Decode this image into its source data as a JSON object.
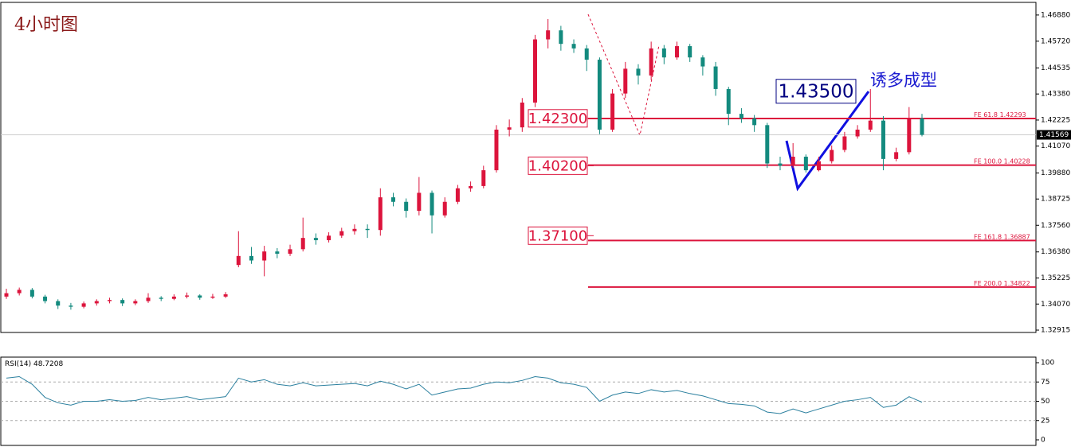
{
  "chart_data": {
    "type": "candlestick",
    "title": "4小时图",
    "ylim": [
      1.3281,
      1.4744
    ],
    "yticks": [
      {
        "value": 1.4688,
        "label": "1.46880"
      },
      {
        "value": 1.4572,
        "label": "1.45720"
      },
      1.44535,
      {
        "value": 1.4338,
        "label": "1.43380"
      },
      1.42225,
      {
        "value": 1.4107,
        "label": "1.41070"
      },
      {
        "value": 1.3988,
        "label": "1.39880"
      },
      1.38725,
      {
        "value": 1.3756,
        "label": "1.37560"
      },
      {
        "value": 1.3638,
        "label": "1.36380"
      },
      1.35225,
      {
        "value": 1.3407,
        "label": "1.34070"
      },
      1.32915
    ],
    "up_color": "#dc143c",
    "down_color": "#138a7e",
    "ohlc": [
      [
        1.344,
        1.3475,
        1.343,
        1.3455
      ],
      [
        1.3455,
        1.348,
        1.3445,
        1.347
      ],
      [
        1.347,
        1.3478,
        1.3432,
        1.344
      ],
      [
        1.344,
        1.3448,
        1.341,
        1.342
      ],
      [
        1.342,
        1.3428,
        1.3385,
        1.34
      ],
      [
        1.34,
        1.3412,
        1.3382,
        1.3395
      ],
      [
        1.3395,
        1.3418,
        1.3388,
        1.341
      ],
      [
        1.341,
        1.3428,
        1.34,
        1.342
      ],
      [
        1.342,
        1.3435,
        1.341,
        1.3425
      ],
      [
        1.3425,
        1.3432,
        1.3398,
        1.341
      ],
      [
        1.341,
        1.3428,
        1.3402,
        1.342
      ],
      [
        1.342,
        1.3455,
        1.3412,
        1.3435
      ],
      [
        1.3435,
        1.3442,
        1.342,
        1.343
      ],
      [
        1.343,
        1.345,
        1.3424,
        1.344
      ],
      [
        1.344,
        1.3458,
        1.3432,
        1.3445
      ],
      [
        1.3445,
        1.345,
        1.3426,
        1.3435
      ],
      [
        1.3435,
        1.3452,
        1.343,
        1.344
      ],
      [
        1.344,
        1.346,
        1.3434,
        1.345
      ],
      [
        1.358,
        1.373,
        1.357,
        1.362
      ],
      [
        1.362,
        1.366,
        1.3585,
        1.36
      ],
      [
        1.36,
        1.3665,
        1.353,
        1.364
      ],
      [
        1.364,
        1.3655,
        1.361,
        1.363
      ],
      [
        1.363,
        1.367,
        1.362,
        1.365
      ],
      [
        1.365,
        1.379,
        1.364,
        1.37
      ],
      [
        1.37,
        1.372,
        1.367,
        1.369
      ],
      [
        1.369,
        1.3725,
        1.368,
        1.371
      ],
      [
        1.371,
        1.3745,
        1.37,
        1.373
      ],
      [
        1.373,
        1.376,
        1.3715,
        1.374
      ],
      [
        1.374,
        1.376,
        1.37,
        1.3735
      ],
      [
        1.3735,
        1.392,
        1.371,
        1.388
      ],
      [
        1.388,
        1.39,
        1.384,
        1.386
      ],
      [
        1.386,
        1.3875,
        1.379,
        1.382
      ],
      [
        1.382,
        1.397,
        1.38,
        1.39
      ],
      [
        1.39,
        1.391,
        1.372,
        1.38
      ],
      [
        1.38,
        1.388,
        1.379,
        1.386
      ],
      [
        1.386,
        1.3935,
        1.385,
        1.392
      ],
      [
        1.392,
        1.395,
        1.3905,
        1.393
      ],
      [
        1.393,
        1.402,
        1.392,
        1.4
      ],
      [
        1.4,
        1.42,
        1.399,
        1.418
      ],
      [
        1.418,
        1.4225,
        1.415,
        1.419
      ],
      [
        1.419,
        1.432,
        1.417,
        1.43
      ],
      [
        1.43,
        1.46,
        1.428,
        1.458
      ],
      [
        1.458,
        1.467,
        1.454,
        1.462
      ],
      [
        1.462,
        1.464,
        1.453,
        1.456
      ],
      [
        1.456,
        1.458,
        1.452,
        1.454
      ],
      [
        1.454,
        1.4555,
        1.444,
        1.449
      ],
      [
        1.449,
        1.45,
        1.416,
        1.418
      ],
      [
        1.418,
        1.436,
        1.417,
        1.434
      ],
      [
        1.434,
        1.448,
        1.432,
        1.445
      ],
      [
        1.445,
        1.447,
        1.438,
        1.442
      ],
      [
        1.442,
        1.457,
        1.44,
        1.454
      ],
      [
        1.454,
        1.4555,
        1.447,
        1.45
      ],
      [
        1.45,
        1.457,
        1.449,
        1.455
      ],
      [
        1.455,
        1.456,
        1.448,
        1.45
      ],
      [
        1.45,
        1.451,
        1.442,
        1.446
      ],
      [
        1.446,
        1.448,
        1.433,
        1.436
      ],
      [
        1.436,
        1.437,
        1.42,
        1.425
      ],
      [
        1.425,
        1.4275,
        1.421,
        1.423
      ],
      [
        1.423,
        1.4245,
        1.417,
        1.42
      ],
      [
        1.42,
        1.421,
        1.401,
        1.403
      ],
      [
        1.403,
        1.406,
        1.4,
        1.402
      ],
      [
        1.402,
        1.412,
        1.401,
        1.406
      ],
      [
        1.406,
        1.407,
        1.399,
        1.4
      ],
      [
        1.4,
        1.406,
        1.3995,
        1.404
      ],
      [
        1.404,
        1.411,
        1.403,
        1.409
      ],
      [
        1.409,
        1.417,
        1.408,
        1.415
      ],
      [
        1.415,
        1.42,
        1.414,
        1.418
      ],
      [
        1.418,
        1.436,
        1.417,
        1.422
      ],
      [
        1.422,
        1.424,
        1.4,
        1.405
      ],
      [
        1.405,
        1.41,
        1.404,
        1.408
      ],
      [
        1.408,
        1.428,
        1.407,
        1.423
      ],
      [
        1.423,
        1.425,
        1.415,
        1.41569
      ]
    ],
    "levels": [
      {
        "name": "FE 61.8",
        "value": 1.42293
      },
      {
        "name": "FE 100.0",
        "value": 1.40228
      },
      {
        "name": "FE 161.8",
        "value": 1.36887
      },
      {
        "name": "FE 200.0",
        "value": 1.34822
      }
    ],
    "level_color": "#dc143c",
    "boxes": [
      {
        "value": 1.423,
        "label": "1.42300"
      },
      {
        "value": 1.402,
        "label": "1.40200"
      },
      {
        "value": 1.371,
        "label": "1.37100"
      }
    ],
    "target": {
      "value": 1.435,
      "label": "1.43500"
    },
    "annotation": "诱多成型",
    "rsi": {
      "name": "RSI(14)",
      "color": "#2a7f9e",
      "ylim": [
        0,
        100
      ],
      "yticks": [
        100,
        75,
        50,
        25,
        0
      ],
      "values": [
        80,
        82,
        72,
        55,
        48,
        45,
        50,
        50,
        52,
        50,
        51,
        55,
        52,
        54,
        56,
        52,
        54,
        56,
        80,
        75,
        78,
        72,
        70,
        74,
        70,
        71,
        72,
        73,
        70,
        76,
        72,
        66,
        72,
        58,
        62,
        66,
        67,
        72,
        75,
        74,
        77,
        82,
        80,
        74,
        72,
        68,
        50,
        58,
        62,
        60,
        65,
        62,
        64,
        60,
        57,
        52,
        47,
        46,
        44,
        36,
        34,
        40,
        35,
        40,
        45,
        50,
        52,
        55,
        42,
        45,
        56,
        48.7208
      ]
    }
  }
}
